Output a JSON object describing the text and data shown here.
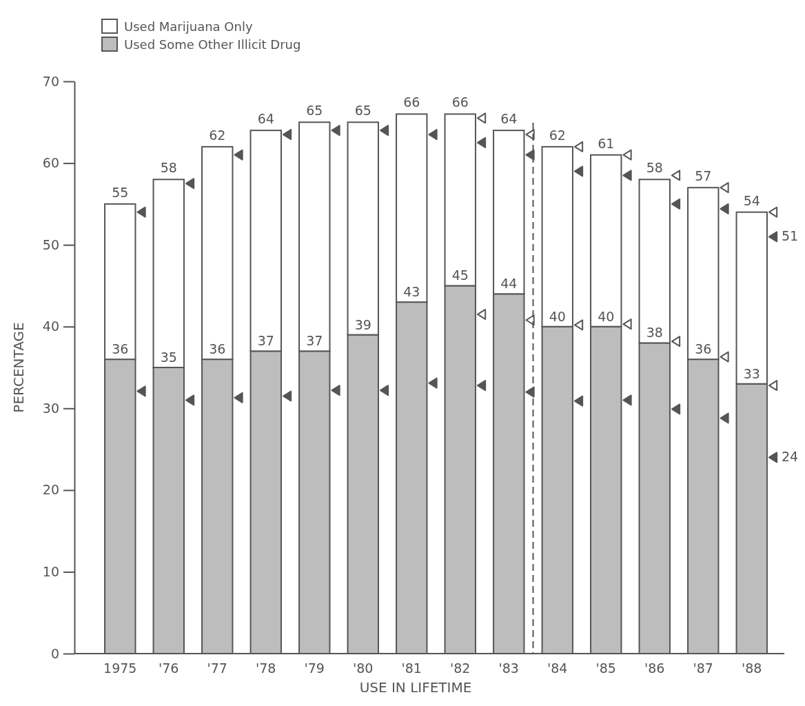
{
  "chart_data": {
    "type": "bar",
    "stacked": true,
    "xlabel": "USE IN LIFETIME",
    "ylabel": "PERCENTAGE",
    "categories": [
      "1975",
      "'76",
      "'77",
      "'78",
      "'79",
      "'80",
      "'81",
      "'82",
      "'83",
      "'84",
      "'85",
      "'86",
      "'87",
      "'88"
    ],
    "series": [
      {
        "name": "Used Some Other Illicit Drug",
        "color": "#bdbdbd",
        "values": [
          36,
          35,
          36,
          37,
          37,
          39,
          43,
          45,
          44,
          40,
          40,
          38,
          36,
          33
        ],
        "value_labels": [
          "36",
          "35",
          "36",
          "37",
          "37",
          "39",
          "43",
          "45",
          "44",
          "40",
          "40",
          "38",
          "36",
          "33"
        ]
      },
      {
        "name": "Used Marijuana Only",
        "color": "#ffffff",
        "values": [
          19,
          23,
          26,
          27,
          28,
          26,
          23,
          21,
          20,
          22,
          21,
          20,
          21,
          21
        ]
      },
      {
        "type": "scatter",
        "marker": "triangle",
        "color": "#555555",
        "values": [
          54,
          57.5,
          61,
          63.5,
          64,
          64,
          63.5,
          62.5,
          61,
          59,
          58.5,
          55,
          54.4,
          51
        ],
        "value_labels": [
          null,
          null,
          null,
          null,
          null,
          null,
          null,
          null,
          null,
          null,
          null,
          null,
          null,
          "51"
        ]
      },
      {
        "type": "scatter",
        "marker": "triangle",
        "color": "#555555",
        "values": [
          32.1,
          31,
          31.3,
          31.5,
          32.2,
          32.2,
          33.1,
          32.8,
          32,
          30.9,
          31,
          29.9,
          28.8,
          24
        ],
        "value_labels": [
          null,
          null,
          null,
          null,
          null,
          null,
          null,
          null,
          null,
          null,
          null,
          null,
          null,
          "24"
        ]
      },
      {
        "type": "scatter",
        "marker": "triangle",
        "color": "#ffffff",
        "values": [
          null,
          null,
          null,
          null,
          null,
          null,
          null,
          65.5,
          63.5,
          62,
          61,
          58.5,
          57,
          54
        ]
      },
      {
        "type": "scatter",
        "marker": "triangle",
        "color": "#ffffff",
        "values": [
          null,
          null,
          null,
          null,
          null,
          null,
          null,
          41.5,
          40.8,
          40.2,
          40.3,
          38.2,
          36.3,
          32.8
        ]
      }
    ],
    "totals": [
      "55",
      "58",
      "62",
      "64",
      "65",
      "65",
      "66",
      "66",
      "64",
      "62",
      "61",
      "58",
      "57",
      "54"
    ],
    "ylim": [
      0,
      70
    ],
    "yticks": [
      0,
      10,
      20,
      30,
      40,
      50,
      60,
      70
    ],
    "grid": false,
    "legend": "top left"
  }
}
